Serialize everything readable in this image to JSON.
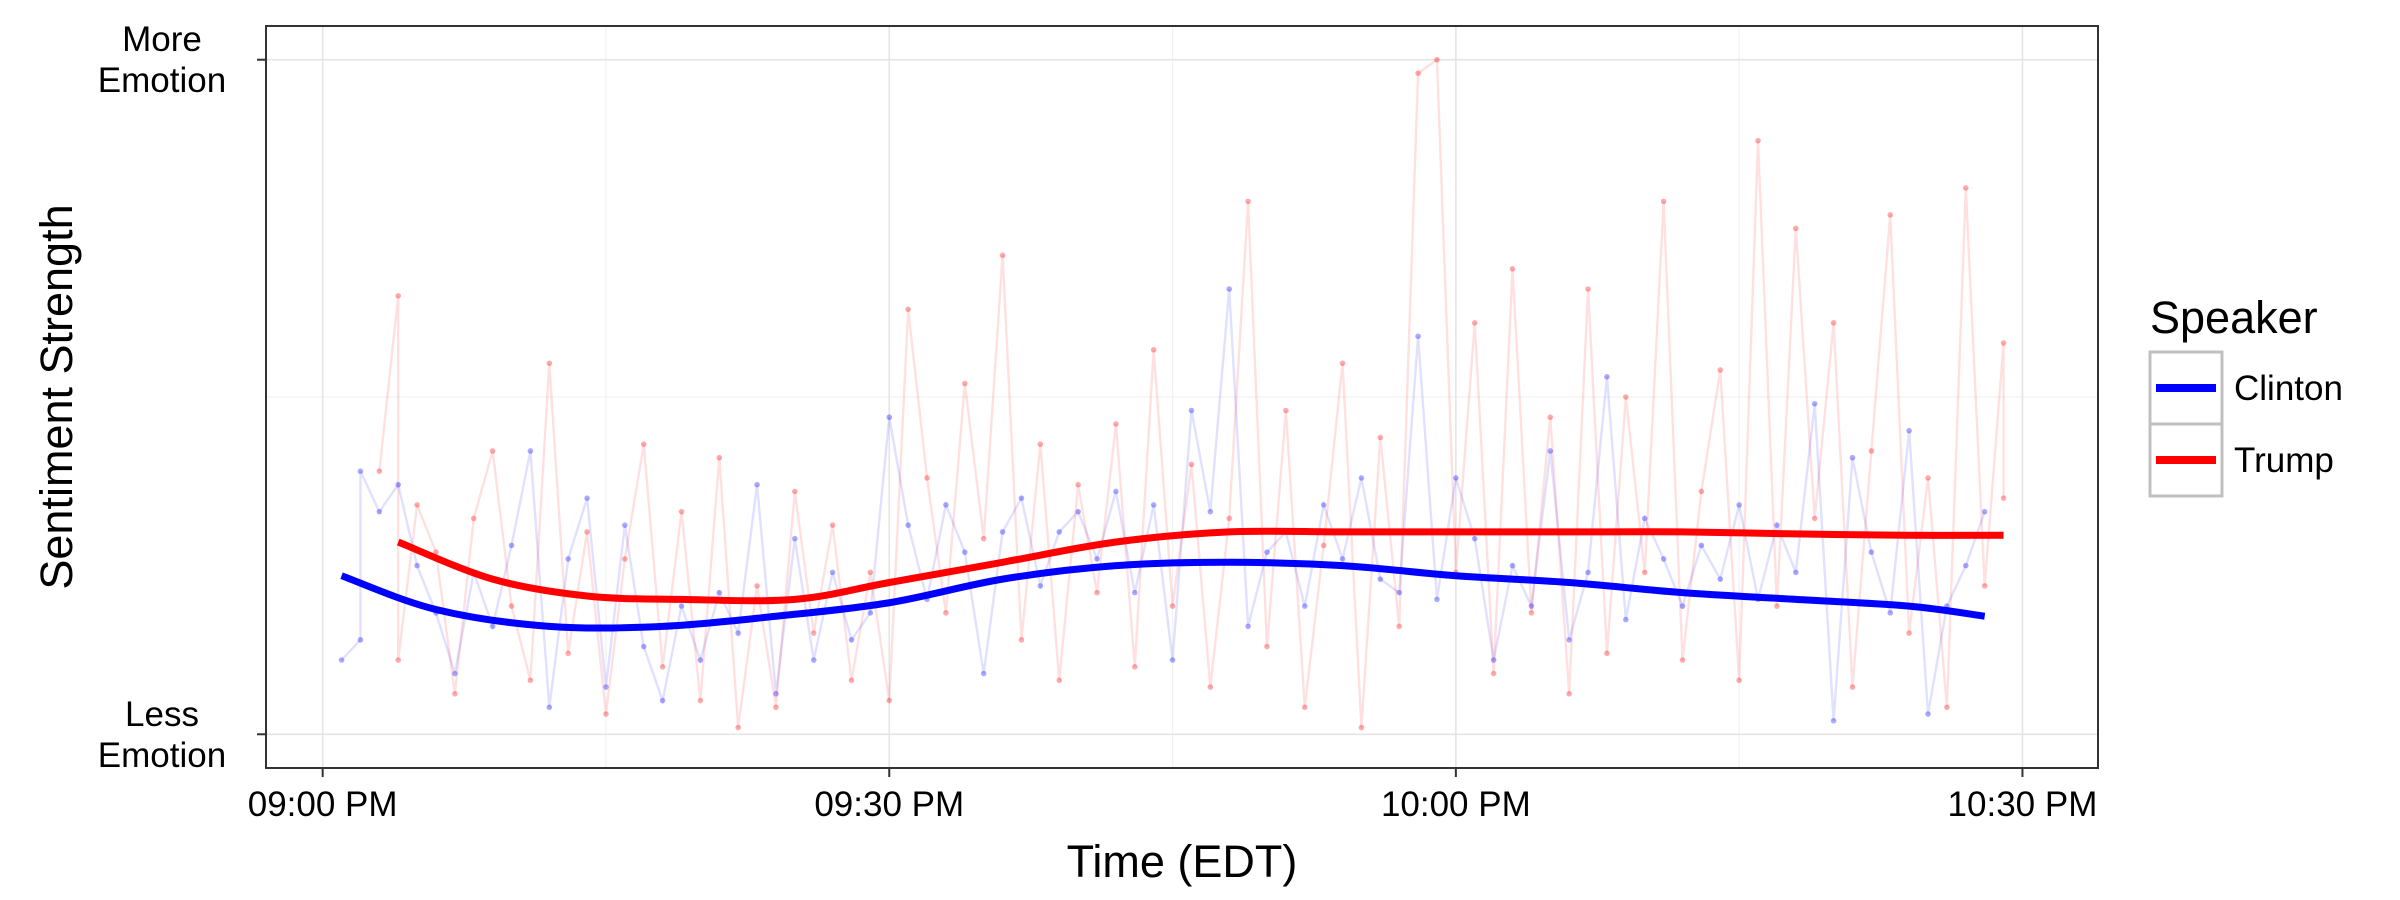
{
  "chart_data": {
    "type": "line",
    "title": "",
    "xlabel": "Time (EDT)",
    "ylabel": "Sentiment Strength",
    "x_ticks": [
      {
        "value": "09:00 PM",
        "label": "09:00 PM"
      },
      {
        "value": "09:30 PM",
        "label": "09:30 PM"
      },
      {
        "value": "10:00 PM",
        "label": "10:00 PM"
      },
      {
        "value": "10:30 PM",
        "label": "10:30 PM"
      }
    ],
    "y_ticks": [
      {
        "value": 0,
        "lines": [
          "Less",
          "Emotion"
        ]
      },
      {
        "value": 1,
        "lines": [
          "More",
          "Emotion"
        ]
      }
    ],
    "xlim": [
      "08:57 PM",
      "10:34 PM"
    ],
    "ylim": [
      -0.05,
      1.05
    ],
    "grid": true,
    "legend": {
      "title": "Speaker",
      "position": "right"
    },
    "series": [
      {
        "name": "Clinton",
        "color": "#0000ff",
        "smooth": [
          [
            "09:01 PM",
            0.235
          ],
          [
            "09:06 PM",
            0.185
          ],
          [
            "09:12 PM",
            0.16
          ],
          [
            "09:18 PM",
            0.16
          ],
          [
            "09:24 PM",
            0.175
          ],
          [
            "09:30 PM",
            0.195
          ],
          [
            "09:36 PM",
            0.23
          ],
          [
            "09:42 PM",
            0.25
          ],
          [
            "09:48 PM",
            0.255
          ],
          [
            "09:54 PM",
            0.25
          ],
          [
            "10:00 PM",
            0.235
          ],
          [
            "10:06 PM",
            0.225
          ],
          [
            "10:12 PM",
            0.21
          ],
          [
            "10:18 PM",
            0.2
          ],
          [
            "10:24 PM",
            0.19
          ],
          [
            "10:28 PM",
            0.175
          ]
        ],
        "points": [
          [
            "09:01 PM",
            0.11
          ],
          [
            "09:02 PM",
            0.14
          ],
          [
            "09:02 PM",
            0.39
          ],
          [
            "09:03 PM",
            0.33
          ],
          [
            "09:04 PM",
            0.37
          ],
          [
            "09:05 PM",
            0.25
          ],
          [
            "09:06 PM",
            0.18
          ],
          [
            "09:07 PM",
            0.09
          ],
          [
            "09:08 PM",
            0.24
          ],
          [
            "09:09 PM",
            0.16
          ],
          [
            "09:10 PM",
            0.28
          ],
          [
            "09:11 PM",
            0.42
          ],
          [
            "09:12 PM",
            0.04
          ],
          [
            "09:13 PM",
            0.26
          ],
          [
            "09:14 PM",
            0.35
          ],
          [
            "09:15 PM",
            0.07
          ],
          [
            "09:16 PM",
            0.31
          ],
          [
            "09:17 PM",
            0.13
          ],
          [
            "09:18 PM",
            0.05
          ],
          [
            "09:19 PM",
            0.19
          ],
          [
            "09:20 PM",
            0.11
          ],
          [
            "09:21 PM",
            0.21
          ],
          [
            "09:22 PM",
            0.15
          ],
          [
            "09:23 PM",
            0.37
          ],
          [
            "09:24 PM",
            0.06
          ],
          [
            "09:25 PM",
            0.29
          ],
          [
            "09:26 PM",
            0.11
          ],
          [
            "09:27 PM",
            0.24
          ],
          [
            "09:28 PM",
            0.14
          ],
          [
            "09:29 PM",
            0.18
          ],
          [
            "09:30 PM",
            0.47
          ],
          [
            "09:31 PM",
            0.31
          ],
          [
            "09:32 PM",
            0.2
          ],
          [
            "09:33 PM",
            0.34
          ],
          [
            "09:34 PM",
            0.27
          ],
          [
            "09:35 PM",
            0.09
          ],
          [
            "09:36 PM",
            0.3
          ],
          [
            "09:37 PM",
            0.35
          ],
          [
            "09:38 PM",
            0.22
          ],
          [
            "09:39 PM",
            0.3
          ],
          [
            "09:40 PM",
            0.33
          ],
          [
            "09:41 PM",
            0.26
          ],
          [
            "09:42 PM",
            0.36
          ],
          [
            "09:43 PM",
            0.21
          ],
          [
            "09:44 PM",
            0.34
          ],
          [
            "09:45 PM",
            0.11
          ],
          [
            "09:46 PM",
            0.48
          ],
          [
            "09:47 PM",
            0.33
          ],
          [
            "09:48 PM",
            0.66
          ],
          [
            "09:49 PM",
            0.16
          ],
          [
            "09:50 PM",
            0.27
          ],
          [
            "09:51 PM",
            0.3
          ],
          [
            "09:52 PM",
            0.19
          ],
          [
            "09:53 PM",
            0.34
          ],
          [
            "09:54 PM",
            0.26
          ],
          [
            "09:55 PM",
            0.38
          ],
          [
            "09:56 PM",
            0.23
          ],
          [
            "09:57 PM",
            0.21
          ],
          [
            "09:58 PM",
            0.59
          ],
          [
            "09:59 PM",
            0.2
          ],
          [
            "10:00 PM",
            0.38
          ],
          [
            "10:01 PM",
            0.29
          ],
          [
            "10:02 PM",
            0.11
          ],
          [
            "10:03 PM",
            0.25
          ],
          [
            "10:04 PM",
            0.19
          ],
          [
            "10:05 PM",
            0.42
          ],
          [
            "10:06 PM",
            0.14
          ],
          [
            "10:07 PM",
            0.24
          ],
          [
            "10:08 PM",
            0.53
          ],
          [
            "10:09 PM",
            0.17
          ],
          [
            "10:10 PM",
            0.32
          ],
          [
            "10:11 PM",
            0.26
          ],
          [
            "10:12 PM",
            0.19
          ],
          [
            "10:13 PM",
            0.28
          ],
          [
            "10:14 PM",
            0.23
          ],
          [
            "10:15 PM",
            0.34
          ],
          [
            "10:16 PM",
            0.2
          ],
          [
            "10:17 PM",
            0.31
          ],
          [
            "10:18 PM",
            0.24
          ],
          [
            "10:19 PM",
            0.49
          ],
          [
            "10:20 PM",
            0.02
          ],
          [
            "10:21 PM",
            0.41
          ],
          [
            "10:22 PM",
            0.27
          ],
          [
            "10:23 PM",
            0.18
          ],
          [
            "10:24 PM",
            0.45
          ],
          [
            "10:25 PM",
            0.03
          ],
          [
            "10:26 PM",
            0.19
          ],
          [
            "10:27 PM",
            0.25
          ],
          [
            "10:28 PM",
            0.33
          ]
        ]
      },
      {
        "name": "Trump",
        "color": "#ff0000",
        "smooth": [
          [
            "09:04 PM",
            0.285
          ],
          [
            "09:09 PM",
            0.23
          ],
          [
            "09:14 PM",
            0.205
          ],
          [
            "09:19 PM",
            0.2
          ],
          [
            "09:25 PM",
            0.2
          ],
          [
            "09:30 PM",
            0.225
          ],
          [
            "09:36 PM",
            0.255
          ],
          [
            "09:42 PM",
            0.285
          ],
          [
            "09:48 PM",
            0.3
          ],
          [
            "09:54 PM",
            0.3
          ],
          [
            "10:00 PM",
            0.3
          ],
          [
            "10:06 PM",
            0.3
          ],
          [
            "10:12 PM",
            0.3
          ],
          [
            "10:18 PM",
            0.297
          ],
          [
            "10:24 PM",
            0.295
          ],
          [
            "10:29 PM",
            0.295
          ]
        ],
        "points": [
          [
            "09:03 PM",
            0.39
          ],
          [
            "09:04 PM",
            0.65
          ],
          [
            "09:04 PM",
            0.11
          ],
          [
            "09:05 PM",
            0.34
          ],
          [
            "09:06 PM",
            0.27
          ],
          [
            "09:07 PM",
            0.06
          ],
          [
            "09:08 PM",
            0.32
          ],
          [
            "09:09 PM",
            0.42
          ],
          [
            "09:10 PM",
            0.19
          ],
          [
            "09:11 PM",
            0.08
          ],
          [
            "09:12 PM",
            0.55
          ],
          [
            "09:13 PM",
            0.12
          ],
          [
            "09:14 PM",
            0.3
          ],
          [
            "09:15 PM",
            0.03
          ],
          [
            "09:16 PM",
            0.26
          ],
          [
            "09:17 PM",
            0.43
          ],
          [
            "09:18 PM",
            0.1
          ],
          [
            "09:19 PM",
            0.33
          ],
          [
            "09:20 PM",
            0.05
          ],
          [
            "09:21 PM",
            0.41
          ],
          [
            "09:22 PM",
            0.01
          ],
          [
            "09:23 PM",
            0.22
          ],
          [
            "09:24 PM",
            0.04
          ],
          [
            "09:25 PM",
            0.36
          ],
          [
            "09:26 PM",
            0.15
          ],
          [
            "09:27 PM",
            0.31
          ],
          [
            "09:28 PM",
            0.08
          ],
          [
            "09:29 PM",
            0.24
          ],
          [
            "09:30 PM",
            0.05
          ],
          [
            "09:31 PM",
            0.63
          ],
          [
            "09:32 PM",
            0.38
          ],
          [
            "09:33 PM",
            0.18
          ],
          [
            "09:34 PM",
            0.52
          ],
          [
            "09:35 PM",
            0.29
          ],
          [
            "09:36 PM",
            0.71
          ],
          [
            "09:37 PM",
            0.14
          ],
          [
            "09:38 PM",
            0.43
          ],
          [
            "09:39 PM",
            0.08
          ],
          [
            "09:40 PM",
            0.37
          ],
          [
            "09:41 PM",
            0.21
          ],
          [
            "09:42 PM",
            0.46
          ],
          [
            "09:43 PM",
            0.1
          ],
          [
            "09:44 PM",
            0.57
          ],
          [
            "09:45 PM",
            0.19
          ],
          [
            "09:46 PM",
            0.4
          ],
          [
            "09:47 PM",
            0.07
          ],
          [
            "09:48 PM",
            0.32
          ],
          [
            "09:49 PM",
            0.79
          ],
          [
            "09:50 PM",
            0.13
          ],
          [
            "09:51 PM",
            0.48
          ],
          [
            "09:52 PM",
            0.04
          ],
          [
            "09:53 PM",
            0.28
          ],
          [
            "09:54 PM",
            0.55
          ],
          [
            "09:55 PM",
            0.01
          ],
          [
            "09:56 PM",
            0.44
          ],
          [
            "09:57 PM",
            0.16
          ],
          [
            "09:58 PM",
            0.98
          ],
          [
            "09:59 PM",
            1.0
          ],
          [
            "10:00 PM",
            0.24
          ],
          [
            "10:01 PM",
            0.61
          ],
          [
            "10:02 PM",
            0.09
          ],
          [
            "10:03 PM",
            0.69
          ],
          [
            "10:04 PM",
            0.18
          ],
          [
            "10:05 PM",
            0.47
          ],
          [
            "10:06 PM",
            0.06
          ],
          [
            "10:07 PM",
            0.66
          ],
          [
            "10:08 PM",
            0.12
          ],
          [
            "10:09 PM",
            0.5
          ],
          [
            "10:10 PM",
            0.24
          ],
          [
            "10:11 PM",
            0.79
          ],
          [
            "10:12 PM",
            0.11
          ],
          [
            "10:13 PM",
            0.36
          ],
          [
            "10:14 PM",
            0.54
          ],
          [
            "10:15 PM",
            0.08
          ],
          [
            "10:16 PM",
            0.88
          ],
          [
            "10:17 PM",
            0.19
          ],
          [
            "10:18 PM",
            0.75
          ],
          [
            "10:19 PM",
            0.32
          ],
          [
            "10:20 PM",
            0.61
          ],
          [
            "10:21 PM",
            0.07
          ],
          [
            "10:22 PM",
            0.42
          ],
          [
            "10:23 PM",
            0.77
          ],
          [
            "10:24 PM",
            0.15
          ],
          [
            "10:25 PM",
            0.38
          ],
          [
            "10:26 PM",
            0.04
          ],
          [
            "10:27 PM",
            0.81
          ],
          [
            "10:28 PM",
            0.22
          ],
          [
            "10:29 PM",
            0.58
          ],
          [
            "10:29 PM",
            0.35
          ]
        ]
      }
    ]
  }
}
